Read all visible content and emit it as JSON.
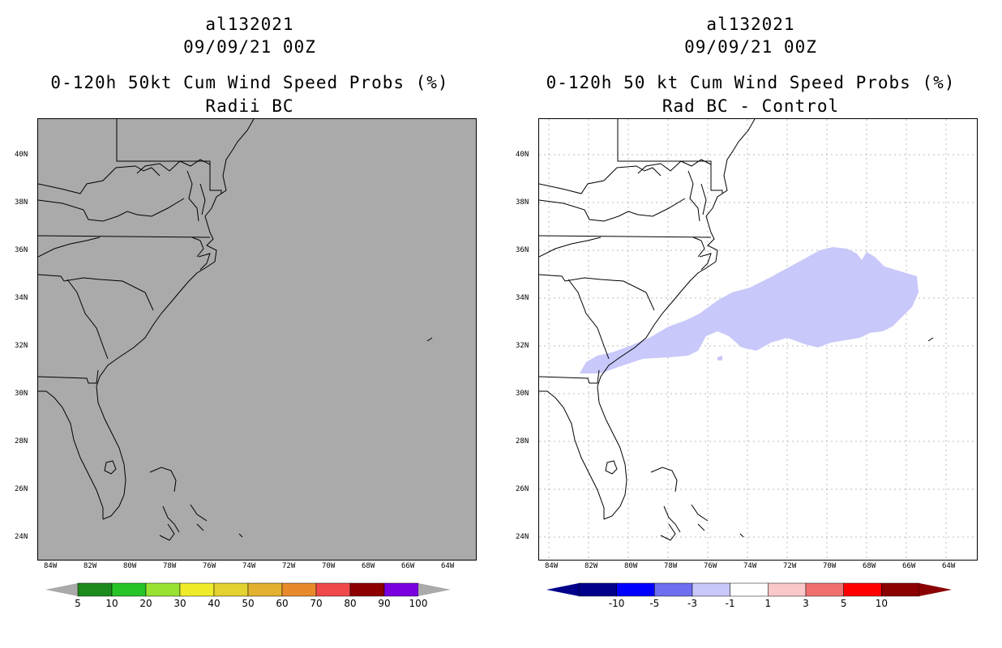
{
  "left_panel": {
    "storm_id": "al132021",
    "init_time": "09/09/21 00Z",
    "title_line1": "0-120h 50kt Cum Wind Speed Probs (%)",
    "title_line2": "Radii BC",
    "lat_labels": [
      "40N",
      "38N",
      "36N",
      "34N",
      "32N",
      "30N",
      "28N",
      "26N",
      "24N"
    ],
    "lon_labels": [
      "84W",
      "82W",
      "80W",
      "78W",
      "76W",
      "74W",
      "72W",
      "70W",
      "68W",
      "66W",
      "64W"
    ],
    "background_color": "#aaaaaa",
    "colorbar": {
      "labels": [
        "5",
        "10",
        "20",
        "30",
        "40",
        "50",
        "60",
        "70",
        "80",
        "90",
        "100"
      ],
      "colors": [
        "#1d8a1d",
        "#27c427",
        "#9ae232",
        "#f0ec2c",
        "#e3d22f",
        "#e3b12f",
        "#e88a2c",
        "#f0494b",
        "#8e0000",
        "#7a00e0"
      ]
    }
  },
  "right_panel": {
    "storm_id": "al132021",
    "init_time": "09/09/21 00Z",
    "title_line1": "0-120h 50 kt Cum Wind Speed Probs (%)",
    "title_line2": "Rad BC - Control",
    "lat_labels": [
      "40N",
      "38N",
      "36N",
      "34N",
      "32N",
      "30N",
      "28N",
      "26N",
      "24N"
    ],
    "lon_labels": [
      "84W",
      "82W",
      "80W",
      "78W",
      "76W",
      "74W",
      "72W",
      "70W",
      "68W",
      "66W",
      "64W"
    ],
    "background_color": "#ffffff",
    "difference_fill_color": "#c8c8fa",
    "colorbar": {
      "labels": [
        "-10",
        "-5",
        "-3",
        "-1",
        "1",
        "3",
        "5",
        "10"
      ],
      "colors": [
        "#00008b",
        "#0000ff",
        "#6e6ef0",
        "#c8c8fa",
        "#ffffff",
        "#fac8c8",
        "#f07070",
        "#ff0000",
        "#8b0000"
      ]
    }
  }
}
